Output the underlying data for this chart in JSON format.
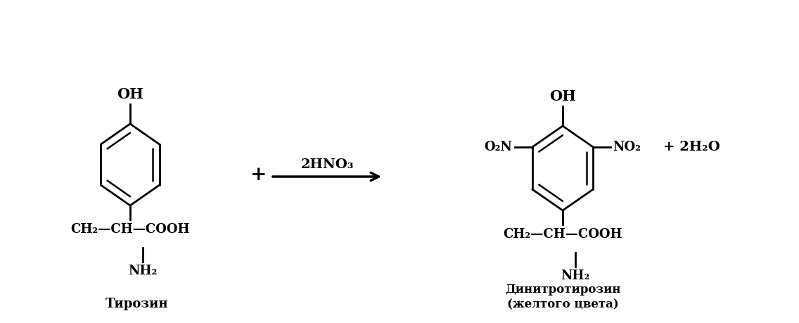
{
  "bg_color": "#ffffff",
  "text_color": "#000000",
  "fig_width": 11.36,
  "fig_height": 4.59,
  "dpi": 100,
  "tyrosine_label": "Тирозин",
  "dnt_label": "Динитротирозин\n(желтого цвета)",
  "reaction_arrow_label": "2HNO₃",
  "reaction_plus": "+",
  "product_extra": "+ 2H₂O",
  "OH_left": "OH",
  "OH_right": "OH",
  "CH2_CH_COOH": "CH₂—CH—COOH",
  "NH2": "NH₂",
  "NO2_left_label": "O₂N",
  "NO2_right_label": "NO₂"
}
